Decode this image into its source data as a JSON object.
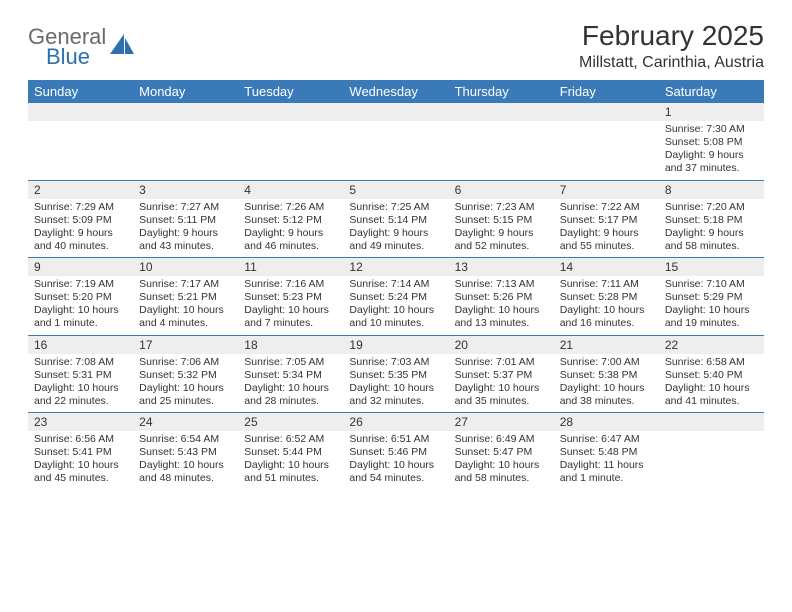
{
  "brand": {
    "word1": "General",
    "word2": "Blue",
    "text_color": "#6a6a6a",
    "accent_color": "#2f6fb0"
  },
  "title": "February 2025",
  "subtitle": "Millstatt, Carinthia, Austria",
  "header_bg": "#3a7ab8",
  "header_text": "#ffffff",
  "daynum_bg": "#eeeeee",
  "divider_color": "#3a7ab8",
  "day_names": [
    "Sunday",
    "Monday",
    "Tuesday",
    "Wednesday",
    "Thursday",
    "Friday",
    "Saturday"
  ],
  "weeks": [
    [
      {
        "n": "",
        "lines": []
      },
      {
        "n": "",
        "lines": []
      },
      {
        "n": "",
        "lines": []
      },
      {
        "n": "",
        "lines": []
      },
      {
        "n": "",
        "lines": []
      },
      {
        "n": "",
        "lines": []
      },
      {
        "n": "1",
        "lines": [
          "Sunrise: 7:30 AM",
          "Sunset: 5:08 PM",
          "Daylight: 9 hours and 37 minutes."
        ]
      }
    ],
    [
      {
        "n": "2",
        "lines": [
          "Sunrise: 7:29 AM",
          "Sunset: 5:09 PM",
          "Daylight: 9 hours and 40 minutes."
        ]
      },
      {
        "n": "3",
        "lines": [
          "Sunrise: 7:27 AM",
          "Sunset: 5:11 PM",
          "Daylight: 9 hours and 43 minutes."
        ]
      },
      {
        "n": "4",
        "lines": [
          "Sunrise: 7:26 AM",
          "Sunset: 5:12 PM",
          "Daylight: 9 hours and 46 minutes."
        ]
      },
      {
        "n": "5",
        "lines": [
          "Sunrise: 7:25 AM",
          "Sunset: 5:14 PM",
          "Daylight: 9 hours and 49 minutes."
        ]
      },
      {
        "n": "6",
        "lines": [
          "Sunrise: 7:23 AM",
          "Sunset: 5:15 PM",
          "Daylight: 9 hours and 52 minutes."
        ]
      },
      {
        "n": "7",
        "lines": [
          "Sunrise: 7:22 AM",
          "Sunset: 5:17 PM",
          "Daylight: 9 hours and 55 minutes."
        ]
      },
      {
        "n": "8",
        "lines": [
          "Sunrise: 7:20 AM",
          "Sunset: 5:18 PM",
          "Daylight: 9 hours and 58 minutes."
        ]
      }
    ],
    [
      {
        "n": "9",
        "lines": [
          "Sunrise: 7:19 AM",
          "Sunset: 5:20 PM",
          "Daylight: 10 hours and 1 minute."
        ]
      },
      {
        "n": "10",
        "lines": [
          "Sunrise: 7:17 AM",
          "Sunset: 5:21 PM",
          "Daylight: 10 hours and 4 minutes."
        ]
      },
      {
        "n": "11",
        "lines": [
          "Sunrise: 7:16 AM",
          "Sunset: 5:23 PM",
          "Daylight: 10 hours and 7 minutes."
        ]
      },
      {
        "n": "12",
        "lines": [
          "Sunrise: 7:14 AM",
          "Sunset: 5:24 PM",
          "Daylight: 10 hours and 10 minutes."
        ]
      },
      {
        "n": "13",
        "lines": [
          "Sunrise: 7:13 AM",
          "Sunset: 5:26 PM",
          "Daylight: 10 hours and 13 minutes."
        ]
      },
      {
        "n": "14",
        "lines": [
          "Sunrise: 7:11 AM",
          "Sunset: 5:28 PM",
          "Daylight: 10 hours and 16 minutes."
        ]
      },
      {
        "n": "15",
        "lines": [
          "Sunrise: 7:10 AM",
          "Sunset: 5:29 PM",
          "Daylight: 10 hours and 19 minutes."
        ]
      }
    ],
    [
      {
        "n": "16",
        "lines": [
          "Sunrise: 7:08 AM",
          "Sunset: 5:31 PM",
          "Daylight: 10 hours and 22 minutes."
        ]
      },
      {
        "n": "17",
        "lines": [
          "Sunrise: 7:06 AM",
          "Sunset: 5:32 PM",
          "Daylight: 10 hours and 25 minutes."
        ]
      },
      {
        "n": "18",
        "lines": [
          "Sunrise: 7:05 AM",
          "Sunset: 5:34 PM",
          "Daylight: 10 hours and 28 minutes."
        ]
      },
      {
        "n": "19",
        "lines": [
          "Sunrise: 7:03 AM",
          "Sunset: 5:35 PM",
          "Daylight: 10 hours and 32 minutes."
        ]
      },
      {
        "n": "20",
        "lines": [
          "Sunrise: 7:01 AM",
          "Sunset: 5:37 PM",
          "Daylight: 10 hours and 35 minutes."
        ]
      },
      {
        "n": "21",
        "lines": [
          "Sunrise: 7:00 AM",
          "Sunset: 5:38 PM",
          "Daylight: 10 hours and 38 minutes."
        ]
      },
      {
        "n": "22",
        "lines": [
          "Sunrise: 6:58 AM",
          "Sunset: 5:40 PM",
          "Daylight: 10 hours and 41 minutes."
        ]
      }
    ],
    [
      {
        "n": "23",
        "lines": [
          "Sunrise: 6:56 AM",
          "Sunset: 5:41 PM",
          "Daylight: 10 hours and 45 minutes."
        ]
      },
      {
        "n": "24",
        "lines": [
          "Sunrise: 6:54 AM",
          "Sunset: 5:43 PM",
          "Daylight: 10 hours and 48 minutes."
        ]
      },
      {
        "n": "25",
        "lines": [
          "Sunrise: 6:52 AM",
          "Sunset: 5:44 PM",
          "Daylight: 10 hours and 51 minutes."
        ]
      },
      {
        "n": "26",
        "lines": [
          "Sunrise: 6:51 AM",
          "Sunset: 5:46 PM",
          "Daylight: 10 hours and 54 minutes."
        ]
      },
      {
        "n": "27",
        "lines": [
          "Sunrise: 6:49 AM",
          "Sunset: 5:47 PM",
          "Daylight: 10 hours and 58 minutes."
        ]
      },
      {
        "n": "28",
        "lines": [
          "Sunrise: 6:47 AM",
          "Sunset: 5:48 PM",
          "Daylight: 11 hours and 1 minute."
        ]
      },
      {
        "n": "",
        "lines": []
      }
    ]
  ]
}
